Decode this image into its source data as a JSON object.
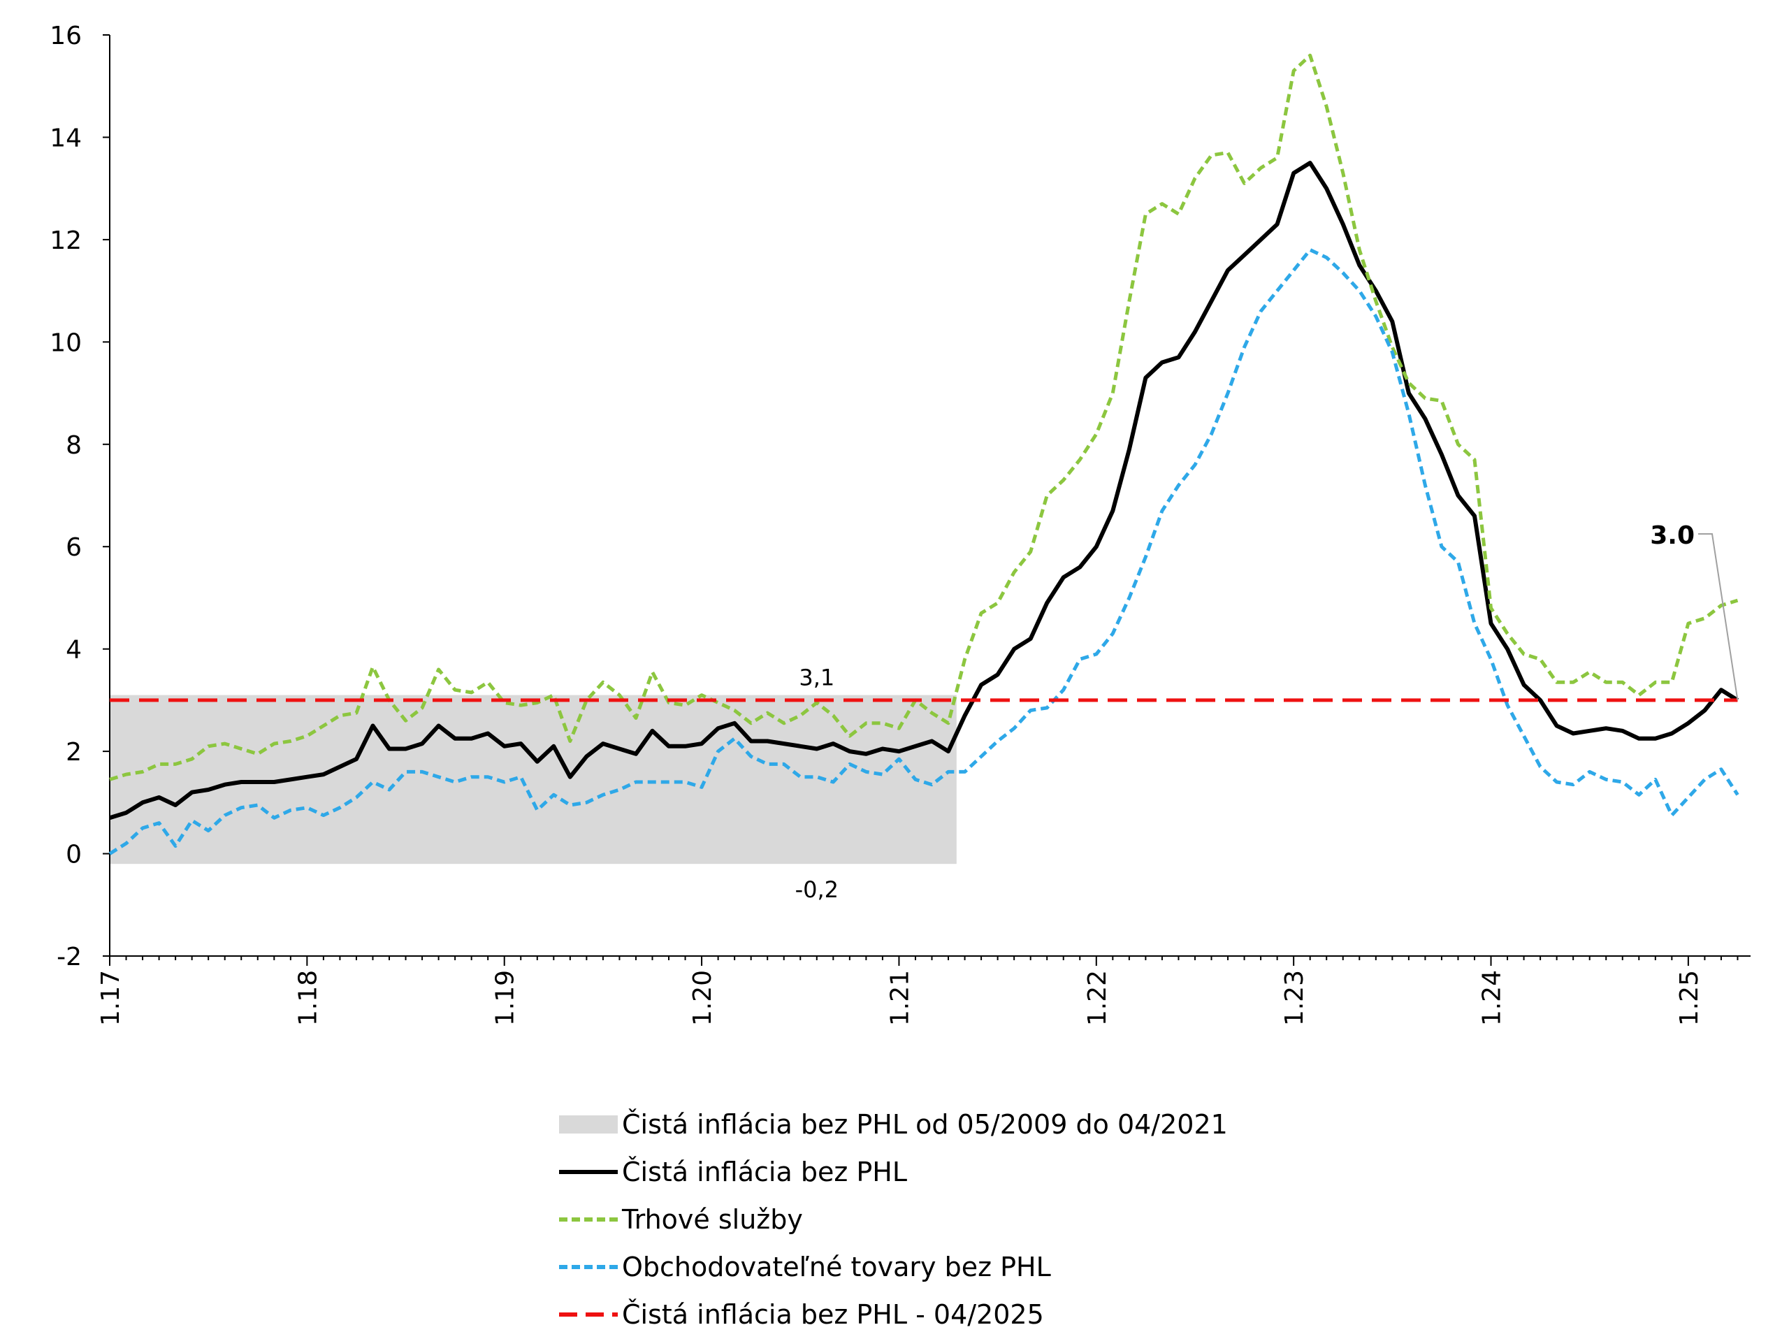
{
  "chart_data": {
    "type": "line",
    "title": "",
    "xlabel": "",
    "ylabel": "",
    "ylim": [
      -2,
      16
    ],
    "yticks": [
      "-2",
      "0",
      "2",
      "4",
      "6",
      "8",
      "10",
      "12",
      "14",
      "16"
    ],
    "xticks": [
      "1.17",
      "1.18",
      "1.19",
      "1.20",
      "1.21",
      "1.22",
      "1.23",
      "1.24",
      "1.25"
    ],
    "x_start": "01/2017",
    "x_end": "04/2025",
    "grid": false,
    "legend_position": "bottom",
    "band": {
      "name": "Čistá inflácia bez PHL od 05/2009 do 04/2021",
      "upper": 3.1,
      "lower": -0.2,
      "end_month_index": 51.5,
      "upper_label": "3,1",
      "lower_label": "-0,2",
      "color": "#d9d9d9"
    },
    "reference": {
      "name": "Čistá inflácia bez PHL - 04/2025",
      "value": 3.0,
      "color": "#ee1111"
    },
    "annotation": {
      "text": "3.0"
    },
    "series": [
      {
        "name": "Čistá inflácia bez PHL",
        "color": "#000000",
        "style": "solid",
        "values": [
          0.7,
          0.8,
          1.0,
          1.1,
          0.95,
          1.2,
          1.25,
          1.35,
          1.4,
          1.4,
          1.4,
          1.45,
          1.5,
          1.55,
          1.7,
          1.85,
          2.5,
          2.05,
          2.05,
          2.15,
          2.5,
          2.25,
          2.25,
          2.35,
          2.1,
          2.15,
          1.8,
          2.1,
          1.5,
          1.9,
          2.15,
          2.05,
          1.95,
          2.4,
          2.1,
          2.1,
          2.15,
          2.45,
          2.55,
          2.2,
          2.2,
          2.15,
          2.1,
          2.05,
          2.15,
          2.0,
          1.95,
          2.05,
          2.0,
          2.1,
          2.2,
          2.0,
          2.7,
          3.3,
          3.5,
          4.0,
          4.2,
          4.9,
          5.4,
          5.6,
          6.0,
          6.7,
          7.9,
          9.3,
          9.6,
          9.7,
          10.2,
          10.8,
          11.4,
          11.7,
          12.0,
          12.3,
          13.3,
          13.5,
          13.0,
          12.3,
          11.5,
          11.0,
          10.4,
          9.0,
          8.5,
          7.8,
          7.0,
          6.6,
          4.5,
          4.0,
          3.3,
          3.0,
          2.5,
          2.35,
          2.4,
          2.45,
          2.4,
          2.25,
          2.25,
          2.35,
          2.55,
          2.8,
          3.2,
          3.0
        ]
      },
      {
        "name": "Trhové služby",
        "color": "#8cc63f",
        "style": "dashed",
        "values": [
          1.45,
          1.55,
          1.6,
          1.75,
          1.75,
          1.85,
          2.1,
          2.15,
          2.05,
          1.95,
          2.15,
          2.2,
          2.3,
          2.5,
          2.7,
          2.75,
          3.65,
          3.0,
          2.6,
          2.85,
          3.6,
          3.2,
          3.15,
          3.35,
          2.95,
          2.9,
          2.95,
          3.1,
          2.2,
          3.0,
          3.35,
          3.1,
          2.65,
          3.55,
          2.95,
          2.9,
          3.1,
          2.95,
          2.8,
          2.55,
          2.75,
          2.55,
          2.7,
          2.95,
          2.7,
          2.3,
          2.55,
          2.55,
          2.45,
          3.0,
          2.75,
          2.55,
          3.8,
          4.7,
          4.9,
          5.5,
          5.9,
          7.0,
          7.3,
          7.7,
          8.2,
          9.0,
          10.8,
          12.5,
          12.7,
          12.5,
          13.2,
          13.65,
          13.7,
          13.1,
          13.4,
          13.6,
          15.3,
          15.6,
          14.6,
          13.3,
          11.8,
          10.8,
          9.9,
          9.2,
          8.9,
          8.85,
          8.0,
          7.7,
          4.8,
          4.3,
          3.9,
          3.8,
          3.35,
          3.35,
          3.55,
          3.35,
          3.35,
          3.1,
          3.35,
          3.35,
          4.5,
          4.6,
          4.85,
          4.95
        ]
      },
      {
        "name": "Obchodovateľné tovary bez PHL",
        "color": "#2ea8e8",
        "style": "dashed",
        "values": [
          0.0,
          0.2,
          0.5,
          0.6,
          0.15,
          0.65,
          0.45,
          0.75,
          0.9,
          0.95,
          0.7,
          0.85,
          0.9,
          0.75,
          0.9,
          1.1,
          1.4,
          1.25,
          1.6,
          1.6,
          1.5,
          1.4,
          1.5,
          1.5,
          1.4,
          1.5,
          0.85,
          1.15,
          0.95,
          1.0,
          1.15,
          1.25,
          1.4,
          1.4,
          1.4,
          1.4,
          1.3,
          2.0,
          2.25,
          1.9,
          1.75,
          1.75,
          1.5,
          1.5,
          1.4,
          1.75,
          1.6,
          1.55,
          1.85,
          1.45,
          1.35,
          1.6,
          1.6,
          1.9,
          2.2,
          2.45,
          2.8,
          2.85,
          3.2,
          3.8,
          3.9,
          4.3,
          5.0,
          5.8,
          6.7,
          7.2,
          7.6,
          8.2,
          9.0,
          9.9,
          10.6,
          11.0,
          11.4,
          11.8,
          11.65,
          11.35,
          11.0,
          10.5,
          9.8,
          8.6,
          7.2,
          6.0,
          5.7,
          4.5,
          3.8,
          2.9,
          2.3,
          1.7,
          1.4,
          1.35,
          1.6,
          1.45,
          1.4,
          1.15,
          1.45,
          0.75,
          1.1,
          1.45,
          1.65,
          1.15
        ]
      }
    ]
  },
  "legend": {
    "band": "Čistá inflácia bez PHL od 05/2009 do 04/2021",
    "core": "Čistá inflácia bez PHL",
    "services": "Trhové služby",
    "goods": "Obchodovateľné tovary bez PHL",
    "reference": "Čistá inflácia bez PHL - 04/2025"
  }
}
